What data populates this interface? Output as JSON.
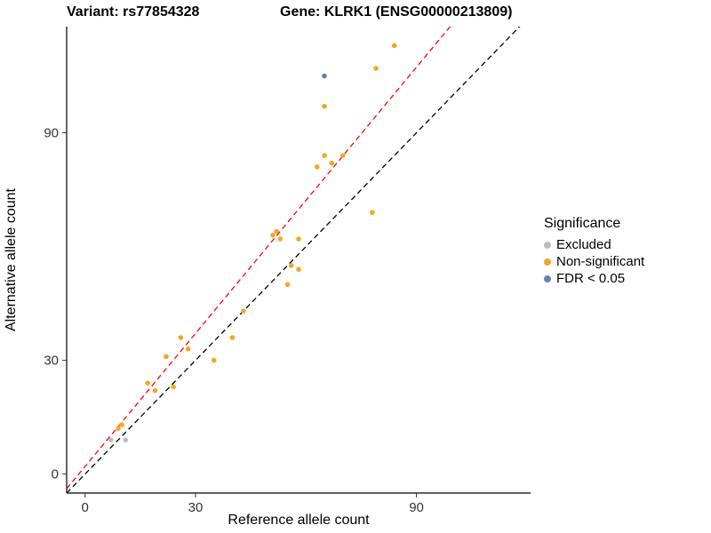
{
  "chart_data": {
    "type": "scatter",
    "title_left": "Variant: rs77854328",
    "title_right": "Gene: KLRK1 (ENSG00000213809)",
    "xlabel": "Reference allele count",
    "ylabel": "Alternative allele count",
    "xlim": [
      -5,
      121
    ],
    "ylim": [
      -5,
      118
    ],
    "x_ticks": [
      0,
      30,
      90
    ],
    "y_ticks": [
      0,
      30,
      90
    ],
    "grid": false,
    "legend": {
      "title": "Significance",
      "position": "right"
    },
    "series": [
      {
        "name": "Excluded",
        "color": "#BDBDBD",
        "points": [
          [
            7,
            9
          ],
          [
            11,
            9
          ]
        ]
      },
      {
        "name": "Non-significant",
        "color": "#F6A52C",
        "points": [
          [
            9,
            12
          ],
          [
            10,
            13
          ],
          [
            17,
            24
          ],
          [
            19,
            22
          ],
          [
            22,
            31
          ],
          [
            24,
            23
          ],
          [
            26,
            36
          ],
          [
            28,
            33
          ],
          [
            35,
            30
          ],
          [
            40,
            36
          ],
          [
            43,
            43
          ],
          [
            51,
            63
          ],
          [
            52,
            64
          ],
          [
            53,
            62
          ],
          [
            55,
            50
          ],
          [
            56,
            55
          ],
          [
            58,
            54
          ],
          [
            58,
            62
          ],
          [
            63,
            81
          ],
          [
            65,
            84
          ],
          [
            67,
            82
          ],
          [
            70,
            84
          ],
          [
            65,
            97
          ],
          [
            78,
            69
          ],
          [
            79,
            107
          ],
          [
            84,
            113
          ]
        ]
      },
      {
        "name": "FDR < 0.05",
        "color": "#5C85AD",
        "points": [
          [
            65,
            105
          ]
        ]
      }
    ],
    "lines": [
      {
        "name": "identity",
        "slope": 1,
        "intercept": 0,
        "color": "#000000",
        "dash": "6,4"
      },
      {
        "name": "fit",
        "slope": 1.17,
        "intercept": 2,
        "color": "#FF0000",
        "dash": "6,4"
      }
    ]
  }
}
